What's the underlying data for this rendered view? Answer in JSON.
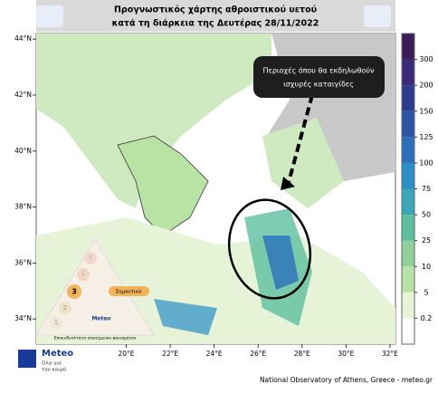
{
  "header": {
    "title_lines": [
      "Προγνωστικός χάρτης αθροιστικού υετού",
      "κατά τη διάρκεια της Δευτέρας 28/11/2022"
    ]
  },
  "map": {
    "lon_lim": [
      15.9,
      32.25
    ],
    "lat_lim": [
      33.1,
      44.2
    ],
    "lat_ticks": [
      {
        "value": 34,
        "label": "34°N"
      },
      {
        "value": 36,
        "label": "36°N"
      },
      {
        "value": 38,
        "label": "38°N"
      },
      {
        "value": 40,
        "label": "40°N"
      },
      {
        "value": 42,
        "label": "42°N"
      },
      {
        "value": 44,
        "label": "44°N"
      }
    ],
    "lon_ticks": [
      {
        "value": 20,
        "label": "20°E"
      },
      {
        "value": 22,
        "label": "22°E"
      },
      {
        "value": 24,
        "label": "24°E"
      },
      {
        "value": 26,
        "label": "26°E"
      },
      {
        "value": 28,
        "label": "28°E"
      },
      {
        "value": 30,
        "label": "30°E"
      },
      {
        "value": 32,
        "label": "32°E"
      }
    ],
    "annotation_lines": [
      "Περιοχές όπου θα εκδηλωθούν",
      "ισχυρές καταιγίδες"
    ]
  },
  "colorbar": {
    "ticks": [
      0.2,
      5,
      10,
      25,
      50,
      75,
      100,
      125,
      150,
      200,
      300
    ],
    "colors": [
      "#ffffff",
      "#e6f3d6",
      "#b9e3a5",
      "#8fd19a",
      "#5cbfa0",
      "#3aa7b8",
      "#2a8ec8",
      "#2a70bd",
      "#2c55a8",
      "#2b3a8f",
      "#3a2a78",
      "#3b1d57"
    ]
  },
  "legend_triangle": {
    "levels": [
      "1",
      "2",
      "3",
      "4",
      "5"
    ],
    "level3_label": "Σημαντικό",
    "badge": "Meteo",
    "caption": "Επικινδυνότητα επικείμενου φαινομένου"
  },
  "logo": {
    "name": "Meteo",
    "tagline_lines": [
      "Όλα για",
      "τον καιρό"
    ]
  },
  "footer": "National Observatory of Athens, Greece - meteo.gr"
}
